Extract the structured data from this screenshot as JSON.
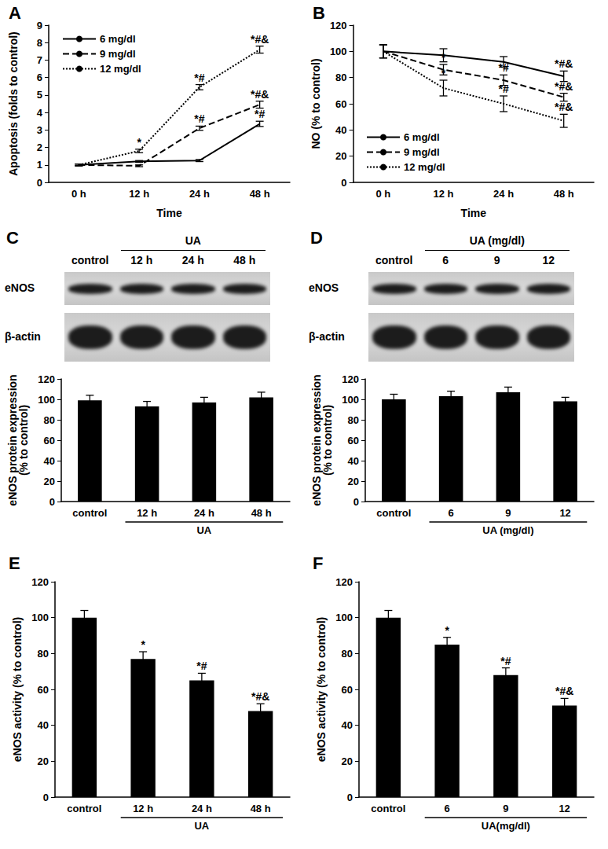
{
  "chart_data": [
    {
      "type": "line",
      "title": "A",
      "x_label": "Time",
      "y_label": "Apoptosis (folds to control)",
      "categories": [
        "0 h",
        "12 h",
        "24 h",
        "48 h"
      ],
      "ylim": [
        0,
        9
      ],
      "yticks": [
        0,
        1,
        2,
        3,
        4,
        5,
        6,
        7,
        8,
        9
      ],
      "grid": false,
      "legend": "upper left",
      "series": [
        {
          "name": "6 mg/dl",
          "color": "#000000",
          "line_style": "solid",
          "values": [
            1,
            1.2,
            1.25,
            3.35
          ],
          "errors": [
            0.05,
            0.05,
            0.06,
            0.15
          ],
          "annotations": [
            null,
            null,
            null,
            "*#"
          ]
        },
        {
          "name": "9 mg/dl",
          "color": "#000000",
          "line_style": "dashed",
          "values": [
            1,
            0.95,
            3.1,
            4.45
          ],
          "errors": [
            0.05,
            0.05,
            0.12,
            0.2
          ],
          "annotations": [
            null,
            null,
            "*#",
            "*#&"
          ]
        },
        {
          "name": "12 mg/dl",
          "color": "#000000",
          "line_style": "dotted",
          "values": [
            1,
            1.8,
            5.45,
            7.6
          ],
          "errors": [
            0.05,
            0.1,
            0.15,
            0.2
          ],
          "annotations": [
            null,
            "*",
            "*#",
            "*#&"
          ]
        }
      ]
    },
    {
      "type": "line",
      "title": "B",
      "x_label": "Time",
      "y_label": "NO (% to control)",
      "categories": [
        "0 h",
        "12 h",
        "24 h",
        "48 h"
      ],
      "ylim": [
        0,
        120
      ],
      "yticks": [
        0,
        20,
        40,
        60,
        80,
        100,
        120
      ],
      "grid": false,
      "legend": "lower left",
      "series": [
        {
          "name": "6 mg/dl",
          "color": "#000000",
          "line_style": "solid",
          "values": [
            100,
            97,
            92,
            81
          ],
          "errors": [
            5,
            5,
            4,
            4
          ],
          "annotations": [
            null,
            null,
            null,
            "*#&"
          ]
        },
        {
          "name": "9 mg/dl",
          "color": "#000000",
          "line_style": "dashed",
          "values": [
            100,
            86,
            78,
            65
          ],
          "errors": [
            5,
            4,
            4,
            3
          ],
          "annotations": [
            null,
            "*",
            "*#",
            "*#&"
          ]
        },
        {
          "name": "12 mg/dl",
          "color": "#000000",
          "line_style": "dotted",
          "values": [
            100,
            72,
            60,
            47
          ],
          "errors": [
            5,
            6,
            6,
            5
          ],
          "annotations": [
            null,
            "*",
            "*#",
            "*#&"
          ]
        }
      ]
    },
    {
      "type": "bar",
      "y_label": "eNOS protein expression\n(% to control)",
      "categories": [
        "control",
        "12 h",
        "24 h",
        "48 h"
      ],
      "values": [
        99,
        93,
        97,
        102
      ],
      "errors": [
        5,
        5,
        5,
        5
      ],
      "color": "#000000",
      "group": {
        "label": "UA",
        "from": "12 h",
        "to": "48 h"
      },
      "ylim": [
        0,
        120
      ],
      "yticks": [
        0,
        20,
        40,
        60,
        80,
        100,
        120
      ],
      "grid": false
    },
    {
      "type": "bar",
      "y_label": "eNOS protein expression\n(% to control)",
      "categories": [
        "control",
        "6",
        "9",
        "12"
      ],
      "values": [
        100,
        103,
        107,
        98
      ],
      "errors": [
        5,
        5,
        5,
        4
      ],
      "color": "#000000",
      "group": {
        "label": "UA (mg/dl)",
        "from": "6",
        "to": "12"
      },
      "ylim": [
        0,
        120
      ],
      "yticks": [
        0,
        20,
        40,
        60,
        80,
        100,
        120
      ],
      "grid": false
    },
    {
      "type": "bar",
      "title": "E",
      "y_label": "eNOS activity (% to control)",
      "categories": [
        "control",
        "12 h",
        "24 h",
        "48 h"
      ],
      "values": [
        100,
        77,
        65,
        48
      ],
      "errors": [
        4,
        4,
        4,
        4
      ],
      "annotations": [
        null,
        "*",
        "*#",
        "*#&"
      ],
      "color": "#000000",
      "group": {
        "label": "UA",
        "from": "12 h",
        "to": "48 h"
      },
      "ylim": [
        0,
        120
      ],
      "yticks": [
        0,
        20,
        40,
        60,
        80,
        100,
        120
      ],
      "grid": false
    },
    {
      "type": "bar",
      "title": "F",
      "y_label": "eNOS activity (% to control)",
      "categories": [
        "control",
        "6",
        "9",
        "12"
      ],
      "values": [
        100,
        85,
        68,
        51
      ],
      "errors": [
        4,
        4,
        4,
        4
      ],
      "annotations": [
        null,
        "*",
        "*#",
        "*#&"
      ],
      "color": "#000000",
      "group": {
        "label": "UA(mg/dl)",
        "from": "6",
        "to": "12"
      },
      "ylim": [
        0,
        120
      ],
      "yticks": [
        0,
        20,
        40,
        60,
        80,
        100,
        120
      ],
      "grid": false
    }
  ],
  "blots": [
    {
      "panel": "C",
      "group": {
        "label": "UA",
        "from": "12 h",
        "to": "48 h"
      },
      "lanes": [
        "control",
        "12 h",
        "24 h",
        "48 h"
      ],
      "rows": [
        "eNOS",
        "β-actin"
      ]
    },
    {
      "panel": "D",
      "group": {
        "label": "UA (mg/dl)",
        "from": "6",
        "to": "12"
      },
      "lanes": [
        "control",
        "6",
        "9",
        "12"
      ],
      "rows": [
        "eNOS",
        "β-actin"
      ]
    }
  ]
}
